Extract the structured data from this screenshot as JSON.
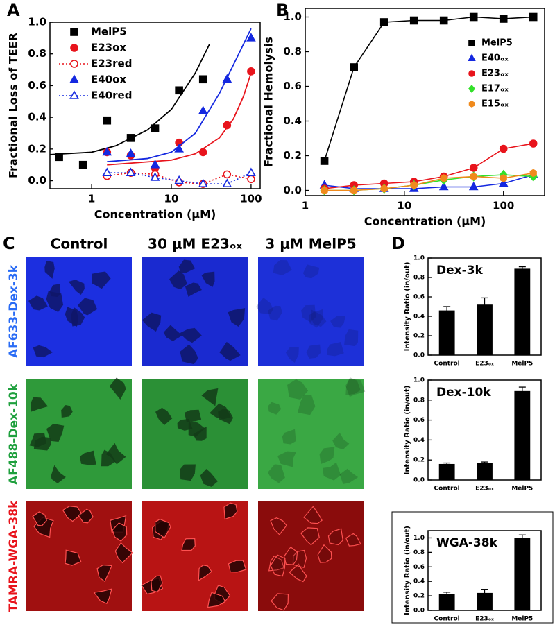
{
  "panels": [
    "A",
    "B",
    "C",
    "D"
  ],
  "chart_data": [
    {
      "type": "scatter",
      "xlabel": "Concentration (μM)",
      "ylabel": "Fractional Loss of TEER",
      "xscale": "log",
      "xlim": [
        0.3,
        130
      ],
      "xticks": [
        1,
        10,
        100
      ],
      "ylim": [
        -0.05,
        1.0
      ],
      "yticks": [
        {
          "value": 0,
          "label": "0.0"
        },
        0.2,
        0.4,
        0.6,
        0.8,
        {
          "value": 1,
          "label": "1.0"
        }
      ],
      "legend": "upper left",
      "series": [
        {
          "name": "MelP5",
          "color": "#000000",
          "marker": "square",
          "filled": true,
          "x": [
            0.39,
            0.78,
            1.56,
            3.1,
            6.25,
            12.5,
            25
          ],
          "values": [
            0.15,
            0.1,
            0.38,
            0.27,
            0.33,
            0.57,
            0.64
          ],
          "fit": {
            "x": [
              0.3,
              1,
              2,
              5,
              10,
              20,
              30
            ],
            "values": [
              0.165,
              0.18,
              0.22,
              0.32,
              0.45,
              0.68,
              0.86
            ]
          }
        },
        {
          "name": "E23ox",
          "color": "#e8141c",
          "marker": "circle",
          "filled": true,
          "x": [
            1.56,
            3.1,
            6.25,
            12.5,
            25,
            50,
            100
          ],
          "values": [
            0.18,
            0.16,
            0.08,
            0.24,
            0.18,
            0.35,
            0.69
          ],
          "fit": {
            "x": [
              1.56,
              10,
              20,
              40,
              60,
              80,
              100
            ],
            "values": [
              0.1,
              0.13,
              0.17,
              0.27,
              0.39,
              0.53,
              0.68
            ]
          }
        },
        {
          "name": "E23red",
          "color": "#e8141c",
          "marker": "circle",
          "filled": false,
          "line": "dotted",
          "x": [
            1.56,
            3.1,
            6.25,
            12.5,
            25,
            50,
            100
          ],
          "values": [
            0.03,
            0.05,
            0.04,
            -0.01,
            -0.02,
            0.04,
            0.01
          ]
        },
        {
          "name": "E40ox",
          "color": "#1428e0",
          "marker": "triangle",
          "filled": true,
          "x": [
            1.56,
            3.1,
            6.25,
            12.5,
            25,
            50,
            100
          ],
          "values": [
            0.18,
            0.17,
            0.1,
            0.2,
            0.44,
            0.64,
            0.9
          ],
          "fit": {
            "x": [
              1.56,
              5,
              10,
              20,
              40,
              70,
              100
            ],
            "values": [
              0.12,
              0.14,
              0.18,
              0.3,
              0.55,
              0.8,
              0.96
            ]
          }
        },
        {
          "name": "E40red",
          "color": "#1428e0",
          "marker": "triangle",
          "filled": false,
          "line": "dotted",
          "x": [
            1.56,
            3.1,
            6.25,
            12.5,
            25,
            50,
            100
          ],
          "values": [
            0.05,
            0.05,
            0.02,
            0.0,
            -0.02,
            -0.02,
            0.05
          ]
        }
      ]
    },
    {
      "type": "scatter",
      "xlabel": "Concentration (μM)",
      "ylabel": "Fractional Hemolysis",
      "xscale": "log",
      "xlim": [
        1,
        260
      ],
      "xticks": [
        1,
        10,
        100
      ],
      "ylim": [
        -0.03,
        1.05
      ],
      "yticks": [
        {
          "value": 0,
          "label": "0.0"
        },
        0.2,
        0.4,
        0.6,
        0.8,
        {
          "value": 1,
          "label": "1.0"
        }
      ],
      "legend": "upper right",
      "series": [
        {
          "name": "MelP5",
          "color": "#000000",
          "marker": "square",
          "filled": true,
          "line": "solid",
          "x": [
            1.56,
            3.1,
            6.25,
            12.5,
            25,
            50,
            100,
            200
          ],
          "values": [
            0.17,
            0.71,
            0.97,
            0.98,
            0.98,
            1.0,
            0.99,
            1.0
          ]
        },
        {
          "name": "E40ₒₓ",
          "color": "#1428e0",
          "marker": "triangle",
          "filled": true,
          "line": "solid",
          "x": [
            1.56,
            3.1,
            6.25,
            12.5,
            25,
            50,
            100,
            200
          ],
          "values": [
            0.03,
            0.01,
            0.01,
            0.01,
            0.02,
            0.02,
            0.04,
            0.09
          ]
        },
        {
          "name": "E23ₒₓ",
          "color": "#e8141c",
          "marker": "circle",
          "filled": true,
          "line": "solid",
          "x": [
            1.56,
            3.1,
            6.25,
            12.5,
            25,
            50,
            100,
            200
          ],
          "values": [
            0.01,
            0.03,
            0.04,
            0.05,
            0.08,
            0.13,
            0.24,
            0.27
          ]
        },
        {
          "name": "E17ₒₓ",
          "color": "#33e02a",
          "marker": "diamond",
          "filled": true,
          "line": "solid",
          "x": [
            1.56,
            3.1,
            6.25,
            12.5,
            25,
            50,
            100,
            200
          ],
          "values": [
            0.0,
            0.0,
            0.01,
            0.03,
            0.06,
            0.08,
            0.09,
            0.08
          ]
        },
        {
          "name": "E15ₒₓ",
          "color": "#f08a1c",
          "marker": "hexagon",
          "filled": true,
          "line": "solid",
          "x": [
            1.56,
            3.1,
            6.25,
            12.5,
            25,
            50,
            100,
            200
          ],
          "values": [
            0.0,
            0.0,
            0.01,
            0.03,
            0.07,
            0.08,
            0.07,
            0.1
          ]
        }
      ]
    },
    {
      "type": "bar",
      "title": "Dex-3k",
      "ylabel": "Intensity Ratio (in/out)",
      "color": "#000000",
      "categories": [
        "Control",
        "E23ₒₓ",
        "MelP5"
      ],
      "values": [
        0.46,
        0.52,
        0.89
      ],
      "errors": [
        0.04,
        0.07,
        0.02
      ],
      "ylim": [
        0,
        1.0
      ],
      "yticks": [
        {
          "value": 0,
          "label": "0.0"
        },
        0.2,
        0.4,
        0.6,
        0.8,
        {
          "value": 1,
          "label": "1.0"
        }
      ]
    },
    {
      "type": "bar",
      "title": "Dex-10k",
      "ylabel": "Intensity Ratio (in/out)",
      "color": "#000000",
      "categories": [
        "Control",
        "E23ₒₓ",
        "MelP5"
      ],
      "values": [
        0.16,
        0.17,
        0.89
      ],
      "errors": [
        0.01,
        0.01,
        0.04
      ],
      "ylim": [
        0,
        1.0
      ],
      "yticks": [
        {
          "value": 0,
          "label": "0.0"
        },
        0.2,
        0.4,
        0.6,
        0.8,
        {
          "value": 1,
          "label": "1.0"
        }
      ]
    },
    {
      "type": "bar",
      "title": "WGA-38k",
      "ylabel": "Intensity Ratio (in/out)",
      "color": "#000000",
      "categories": [
        "Control",
        "E23ₒₓ",
        "MelP5"
      ],
      "values": [
        0.22,
        0.24,
        1.0
      ],
      "errors": [
        0.03,
        0.05,
        0.04
      ],
      "ylim": [
        0,
        1.1
      ],
      "yticks": [
        {
          "value": 0,
          "label": "0.0"
        },
        0.2,
        0.4,
        0.6,
        0.8,
        {
          "value": 1,
          "label": "1.0"
        }
      ]
    }
  ],
  "microscopy": {
    "columns": [
      "Control",
      "30 μM E23ₒₓ",
      "3 μM MelP5"
    ],
    "rows": [
      "AF633-Dex-3k",
      "AF488-Dex-10k",
      "TAMRA-WGA-38k"
    ]
  }
}
